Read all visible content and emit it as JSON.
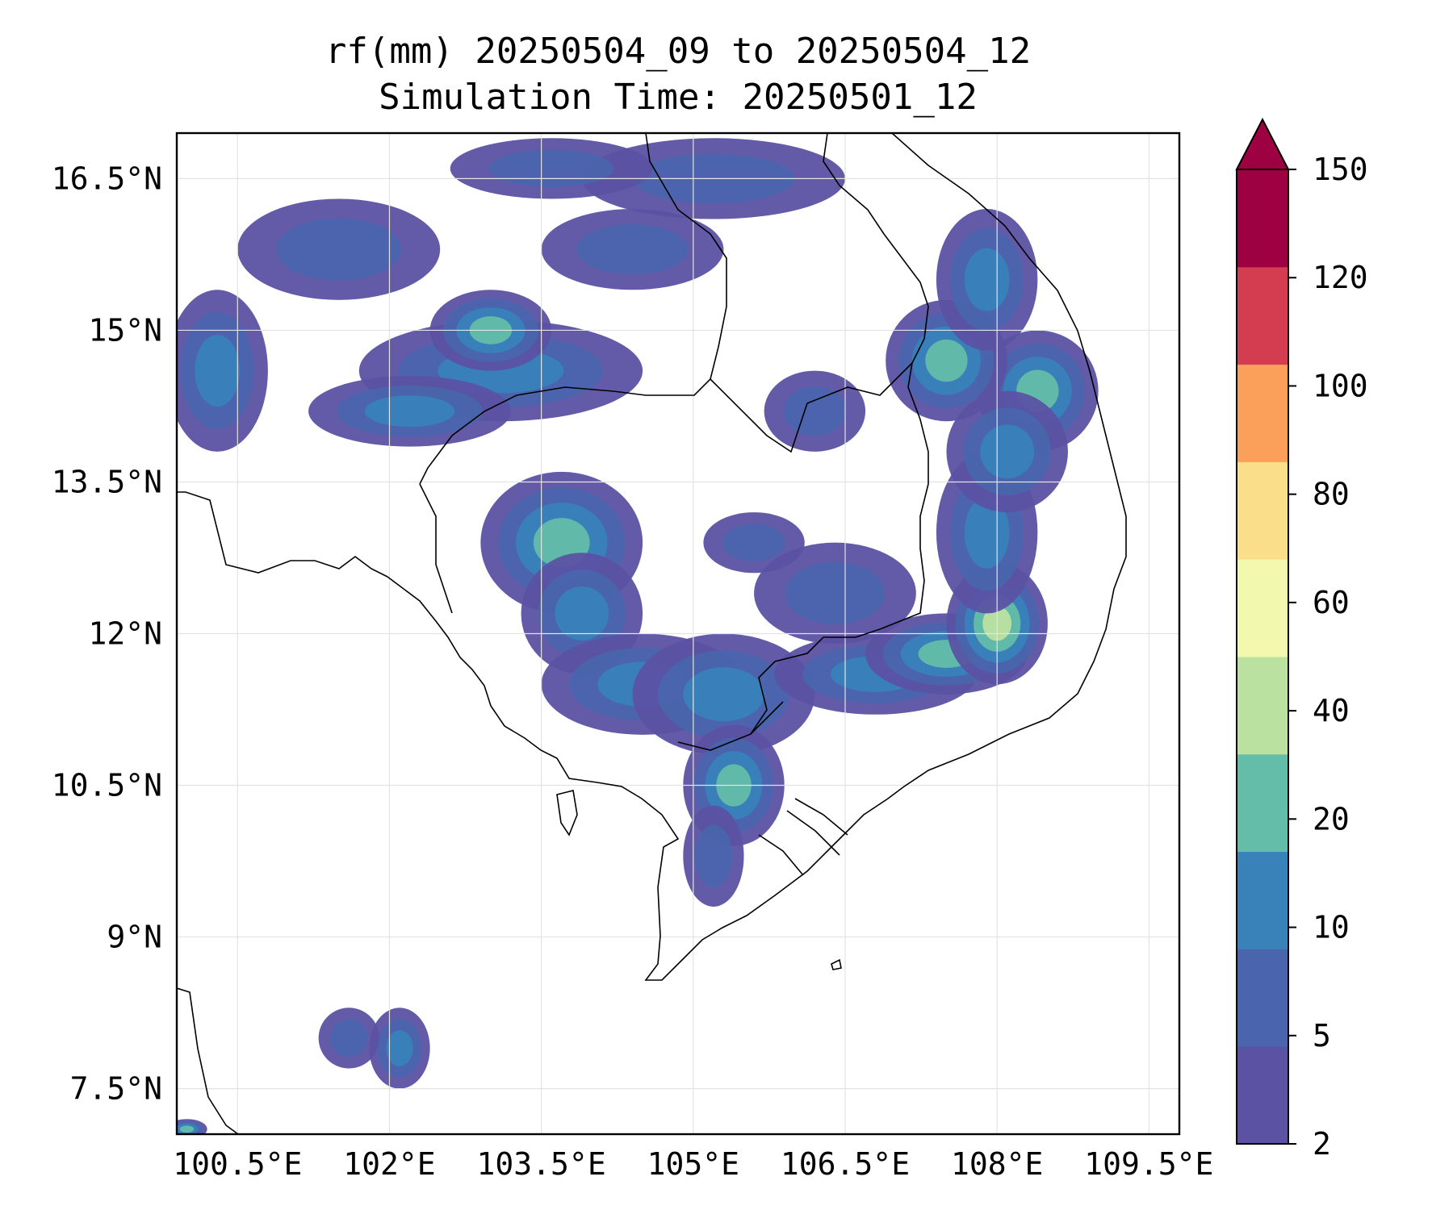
{
  "title": {
    "line1": "rf(mm) 20250504_09 to 20250504_12",
    "line2": "Simulation Time: 20250501_12"
  },
  "map": {
    "lon_range": [
      99.9,
      109.8
    ],
    "lat_range": [
      7.05,
      16.95
    ],
    "x_ticks": [
      "100.5°E",
      "102°E",
      "103.5°E",
      "105°E",
      "106.5°E",
      "108°E",
      "109.5°E"
    ],
    "y_ticks": [
      "16.5°N",
      "15°N",
      "13.5°N",
      "12°N",
      "10.5°N",
      "9°N",
      "7.5°N"
    ],
    "grid": true,
    "coastline_color": "#000000"
  },
  "colorbar": {
    "levels": [
      "2",
      "5",
      "10",
      "20",
      "40",
      "60",
      "80",
      "100",
      "120",
      "150"
    ],
    "colors": [
      "#5b52a3",
      "#4a65ad",
      "#3881b9",
      "#63bda8",
      "#bbe1a0",
      "#f2f9ae",
      "#fbde8a",
      "#fba05b",
      "#d33d4f",
      "#9e0142"
    ],
    "extend": "max"
  },
  "rain_cells": [
    {
      "lon": 103.1,
      "lat": 14.6,
      "rx": 1.4,
      "ry": 0.5,
      "intensity": 10
    },
    {
      "lon": 102.2,
      "lat": 14.2,
      "rx": 1.0,
      "ry": 0.35,
      "intensity": 10
    },
    {
      "lon": 103.0,
      "lat": 15.0,
      "rx": 0.6,
      "ry": 0.4,
      "intensity": 20
    },
    {
      "lon": 101.5,
      "lat": 15.8,
      "rx": 1.0,
      "ry": 0.5,
      "intensity": 5
    },
    {
      "lon": 100.3,
      "lat": 14.6,
      "rx": 0.5,
      "ry": 0.8,
      "intensity": 10
    },
    {
      "lon": 104.4,
      "lat": 15.8,
      "rx": 0.9,
      "ry": 0.4,
      "intensity": 5
    },
    {
      "lon": 105.2,
      "lat": 16.5,
      "rx": 1.3,
      "ry": 0.4,
      "intensity": 5
    },
    {
      "lon": 103.6,
      "lat": 16.6,
      "rx": 1.0,
      "ry": 0.3,
      "intensity": 5
    },
    {
      "lon": 103.7,
      "lat": 12.9,
      "rx": 0.8,
      "ry": 0.7,
      "intensity": 20
    },
    {
      "lon": 103.9,
      "lat": 12.2,
      "rx": 0.6,
      "ry": 0.6,
      "intensity": 10
    },
    {
      "lon": 104.5,
      "lat": 11.5,
      "rx": 1.0,
      "ry": 0.5,
      "intensity": 10
    },
    {
      "lon": 105.3,
      "lat": 11.4,
      "rx": 0.9,
      "ry": 0.6,
      "intensity": 10
    },
    {
      "lon": 105.4,
      "lat": 10.5,
      "rx": 0.5,
      "ry": 0.6,
      "intensity": 20
    },
    {
      "lon": 105.2,
      "lat": 9.8,
      "rx": 0.3,
      "ry": 0.5,
      "intensity": 5
    },
    {
      "lon": 106.4,
      "lat": 12.4,
      "rx": 0.8,
      "ry": 0.5,
      "intensity": 5
    },
    {
      "lon": 106.8,
      "lat": 11.6,
      "rx": 1.0,
      "ry": 0.4,
      "intensity": 10
    },
    {
      "lon": 107.5,
      "lat": 11.8,
      "rx": 0.8,
      "ry": 0.4,
      "intensity": 20
    },
    {
      "lon": 108.0,
      "lat": 12.1,
      "rx": 0.5,
      "ry": 0.6,
      "intensity": 40
    },
    {
      "lon": 107.9,
      "lat": 13.0,
      "rx": 0.5,
      "ry": 0.8,
      "intensity": 10
    },
    {
      "lon": 108.4,
      "lat": 14.4,
      "rx": 0.6,
      "ry": 0.6,
      "intensity": 20
    },
    {
      "lon": 107.5,
      "lat": 14.7,
      "rx": 0.6,
      "ry": 0.6,
      "intensity": 20
    },
    {
      "lon": 107.9,
      "lat": 15.5,
      "rx": 0.5,
      "ry": 0.7,
      "intensity": 10
    },
    {
      "lon": 108.1,
      "lat": 13.8,
      "rx": 0.6,
      "ry": 0.6,
      "intensity": 10
    },
    {
      "lon": 106.2,
      "lat": 14.2,
      "rx": 0.5,
      "ry": 0.4,
      "intensity": 5
    },
    {
      "lon": 105.6,
      "lat": 12.9,
      "rx": 0.5,
      "ry": 0.3,
      "intensity": 5
    },
    {
      "lon": 102.1,
      "lat": 7.9,
      "rx": 0.3,
      "ry": 0.4,
      "intensity": 10
    },
    {
      "lon": 101.6,
      "lat": 8.0,
      "rx": 0.3,
      "ry": 0.3,
      "intensity": 5
    },
    {
      "lon": 100.0,
      "lat": 7.1,
      "rx": 0.2,
      "ry": 0.1,
      "intensity": 20
    }
  ]
}
